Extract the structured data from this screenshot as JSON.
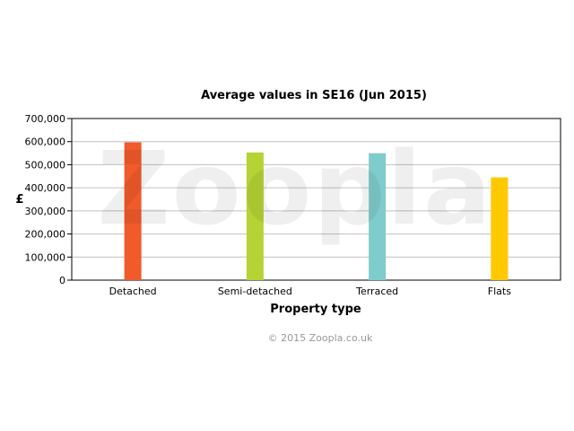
{
  "chart_data": {
    "type": "bar",
    "title": "Average values in SE16 (Jun 2015)",
    "xlabel": "Property type",
    "ylabel": "£",
    "categories": [
      "Detached",
      "Semi-detached",
      "Terraced",
      "Flats"
    ],
    "values": [
      597000,
      553000,
      550000,
      445000
    ],
    "colors": [
      "#f15a2b",
      "#b5d334",
      "#7fcccc",
      "#ffc800"
    ],
    "ylim": [
      0,
      700000
    ],
    "yticks": [
      0,
      100000,
      200000,
      300000,
      400000,
      500000,
      600000,
      700000
    ],
    "ytick_labels": [
      "0",
      "100,000",
      "200,000",
      "300,000",
      "400,000",
      "500,000",
      "600,000",
      "700,000"
    ],
    "grid": true,
    "legend": "none"
  },
  "watermark": "Zoopla",
  "credit": "© 2015 Zoopla.co.uk"
}
